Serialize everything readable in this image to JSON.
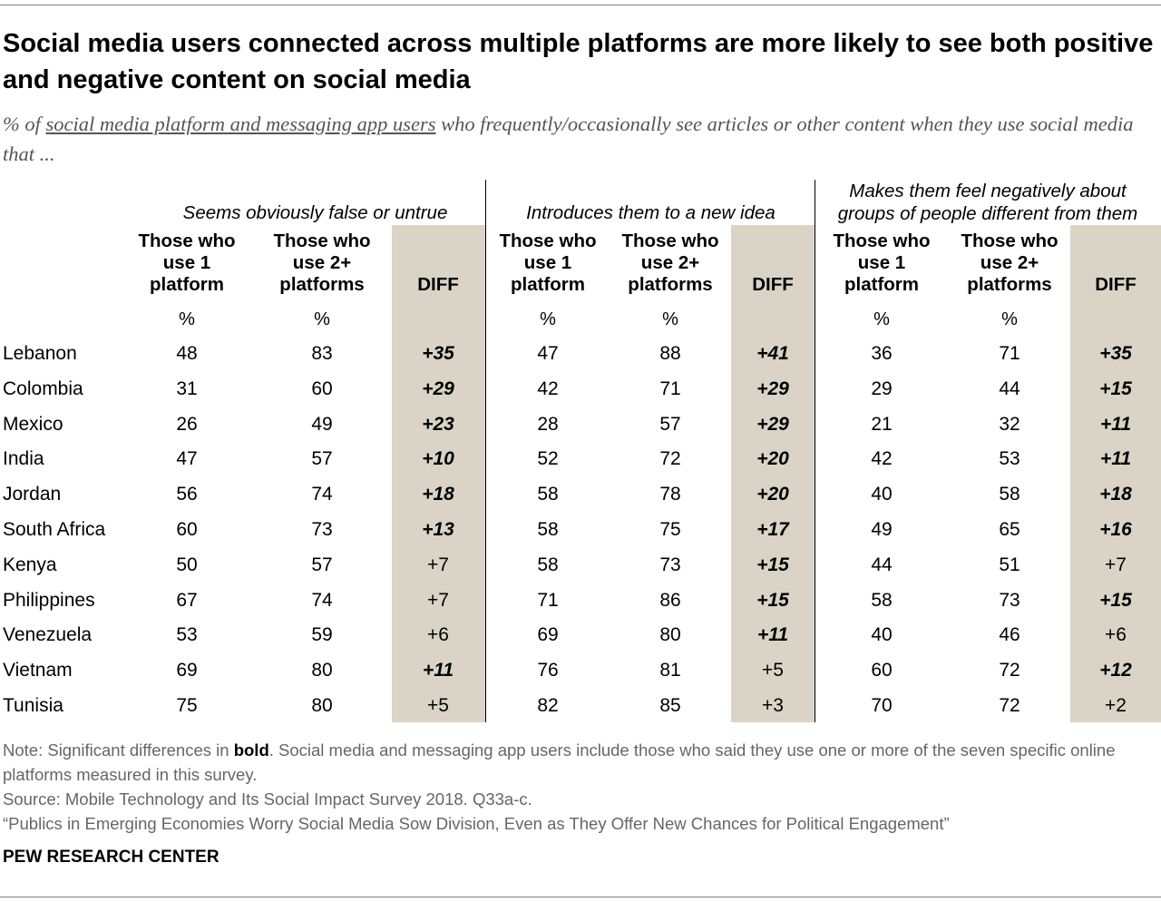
{
  "title": "Social media users connected across multiple platforms are more likely to see both positive and negative content on social media",
  "subtitle": {
    "prefix": "% of ",
    "underlined": "social media platform and messaging app users",
    "suffix": " who frequently/occasionally see articles or other content when they use social media that ..."
  },
  "chart_data": {
    "type": "table",
    "groups": [
      {
        "label": "Seems obviously false or untrue"
      },
      {
        "label_line1": "Makes them feel negatively about",
        "label_line2": "groups of people different from them"
      },
      {
        "label": "Introduces them to a new idea"
      }
    ],
    "column_headers": {
      "one_line1": "Those who",
      "one_line2": "use 1",
      "one_line3": "platform",
      "two_line1": "Those who",
      "two_line2": "use 2+",
      "two_line3": "platforms",
      "diff": "DIFF",
      "pct": "%"
    },
    "rows": [
      {
        "country": "Lebanon",
        "false": [
          "48",
          "83",
          "+35"
        ],
        "idea": [
          "47",
          "88",
          "+41"
        ],
        "neg": [
          "36",
          "71",
          "+35"
        ],
        "sig": [
          true,
          true,
          true
        ]
      },
      {
        "country": "Colombia",
        "false": [
          "31",
          "60",
          "+29"
        ],
        "idea": [
          "42",
          "71",
          "+29"
        ],
        "neg": [
          "29",
          "44",
          "+15"
        ],
        "sig": [
          true,
          true,
          true
        ]
      },
      {
        "country": "Mexico",
        "false": [
          "26",
          "49",
          "+23"
        ],
        "idea": [
          "28",
          "57",
          "+29"
        ],
        "neg": [
          "21",
          "32",
          "+11"
        ],
        "sig": [
          true,
          true,
          true
        ]
      },
      {
        "country": "India",
        "false": [
          "47",
          "57",
          "+10"
        ],
        "idea": [
          "52",
          "72",
          "+20"
        ],
        "neg": [
          "42",
          "53",
          "+11"
        ],
        "sig": [
          true,
          true,
          true
        ]
      },
      {
        "country": "Jordan",
        "false": [
          "56",
          "74",
          "+18"
        ],
        "idea": [
          "58",
          "78",
          "+20"
        ],
        "neg": [
          "40",
          "58",
          "+18"
        ],
        "sig": [
          true,
          true,
          true
        ]
      },
      {
        "country": "South Africa",
        "false": [
          "60",
          "73",
          "+13"
        ],
        "idea": [
          "58",
          "75",
          "+17"
        ],
        "neg": [
          "49",
          "65",
          "+16"
        ],
        "sig": [
          true,
          true,
          true
        ]
      },
      {
        "country": "Kenya",
        "false": [
          "50",
          "57",
          "+7"
        ],
        "idea": [
          "58",
          "73",
          "+15"
        ],
        "neg": [
          "44",
          "51",
          "+7"
        ],
        "sig": [
          false,
          true,
          false
        ]
      },
      {
        "country": "Philippines",
        "false": [
          "67",
          "74",
          "+7"
        ],
        "idea": [
          "71",
          "86",
          "+15"
        ],
        "neg": [
          "58",
          "73",
          "+15"
        ],
        "sig": [
          false,
          true,
          true
        ]
      },
      {
        "country": "Venezuela",
        "false": [
          "53",
          "59",
          "+6"
        ],
        "idea": [
          "69",
          "80",
          "+11"
        ],
        "neg": [
          "40",
          "46",
          "+6"
        ],
        "sig": [
          false,
          true,
          false
        ]
      },
      {
        "country": "Vietnam",
        "false": [
          "69",
          "80",
          "+11"
        ],
        "idea": [
          "76",
          "81",
          "+5"
        ],
        "neg": [
          "60",
          "72",
          "+12"
        ],
        "sig": [
          true,
          false,
          true
        ]
      },
      {
        "country": "Tunisia",
        "false": [
          "75",
          "80",
          "+5"
        ],
        "idea": [
          "82",
          "85",
          "+3"
        ],
        "neg": [
          "70",
          "72",
          "+2"
        ],
        "sig": [
          false,
          false,
          false
        ]
      }
    ]
  },
  "notes": {
    "note_prefix": "Note: Significant differences in ",
    "note_bold": "bold",
    "note_suffix": ". Social media and messaging app users include those who said they use one or more of the seven specific online platforms measured in this survey.",
    "source": "Source: Mobile Technology and Its Social Impact Survey 2018. Q33a-c.",
    "report": "“Publics in Emerging Economies Worry Social Media Sow Division, Even as They Offer New Chances for Political Engagement”"
  },
  "logo": "PEW RESEARCH CENTER",
  "colors": {
    "diff_band": "#d9d4c6",
    "note_text": "#666666",
    "subtitle_text": "#555555",
    "rule": "#7f7f7f"
  }
}
